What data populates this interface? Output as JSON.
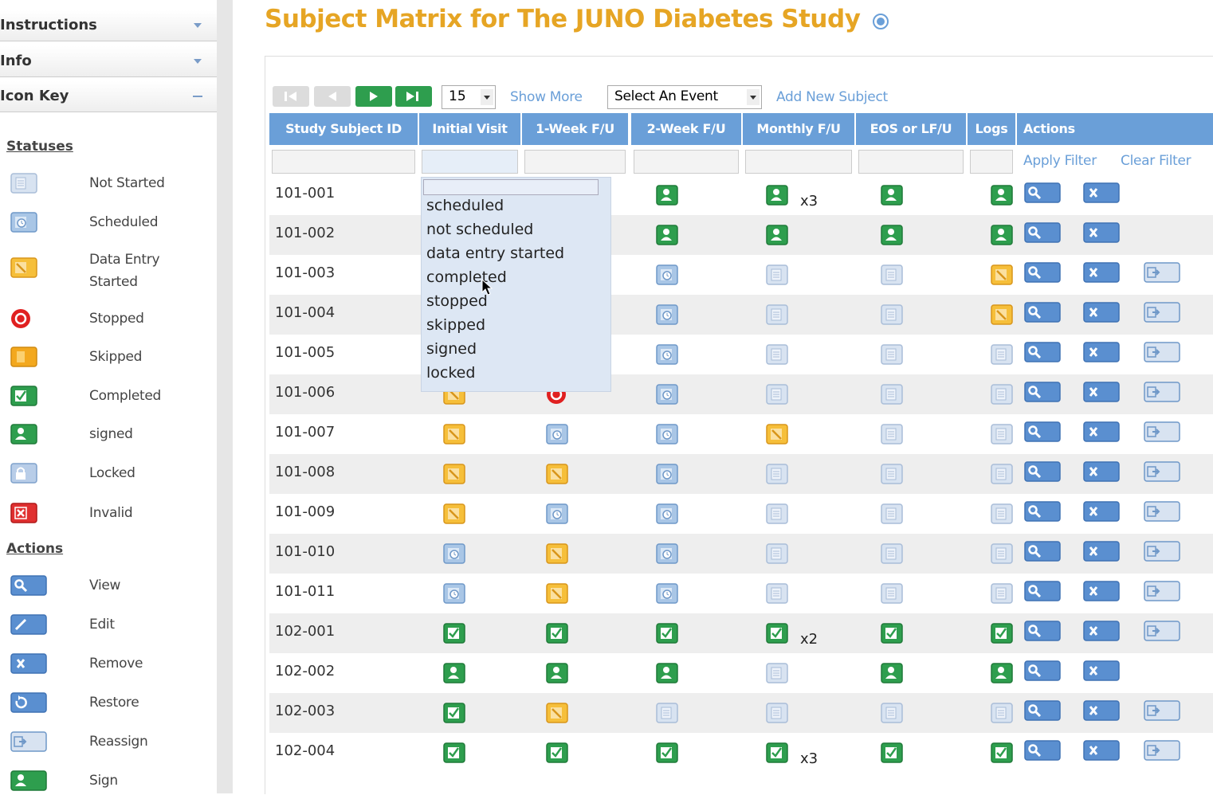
{
  "sidebar": {
    "panels": [
      "Instructions",
      "Info",
      "Icon Key"
    ],
    "statuses_heading": "Statuses",
    "statuses": [
      {
        "label": "Not Started",
        "icon": "not-started"
      },
      {
        "label": "Scheduled",
        "icon": "scheduled"
      },
      {
        "label": "Data Entry Started",
        "icon": "data-entry"
      },
      {
        "label": "Stopped",
        "icon": "stopped"
      },
      {
        "label": "Skipped",
        "icon": "skipped"
      },
      {
        "label": "Completed",
        "icon": "completed"
      },
      {
        "label": "signed",
        "icon": "signed"
      },
      {
        "label": "Locked",
        "icon": "locked"
      },
      {
        "label": "Invalid",
        "icon": "invalid"
      }
    ],
    "actions_heading": "Actions",
    "actions": [
      {
        "label": "View",
        "icon": "view"
      },
      {
        "label": "Edit",
        "icon": "edit"
      },
      {
        "label": "Remove",
        "icon": "remove"
      },
      {
        "label": "Restore",
        "icon": "restore"
      },
      {
        "label": "Reassign",
        "icon": "reassign"
      },
      {
        "label": "Sign",
        "icon": "signed"
      }
    ]
  },
  "main": {
    "title": "Subject Matrix for The JUNO Diabetes Study",
    "toolbar": {
      "page_size": "15",
      "show_more": "Show More",
      "event_select": "Select An Event",
      "add_subject": "Add New Subject"
    },
    "table": {
      "headers": [
        "Study Subject ID",
        "Initial Visit",
        "1-Week F/U",
        "2-Week F/U",
        "Monthly F/U",
        "EOS or LF/U",
        "Logs",
        "Actions"
      ],
      "filter_links": [
        "Apply Filter",
        "Clear Filter"
      ],
      "rows": [
        {
          "id": "101-001",
          "cells": [
            null,
            null,
            "signed",
            {
              "status": "signed",
              "label": "x3"
            },
            "signed",
            "signed"
          ],
          "actions": [
            "view",
            "remove"
          ]
        },
        {
          "id": "101-002",
          "cells": [
            null,
            null,
            "signed",
            "signed",
            "signed",
            "signed"
          ],
          "actions": [
            "view",
            "remove"
          ]
        },
        {
          "id": "101-003",
          "cells": [
            null,
            null,
            "scheduled",
            "not-started",
            "not-started",
            "data-entry"
          ],
          "actions": [
            "view",
            "remove",
            "reassign"
          ]
        },
        {
          "id": "101-004",
          "cells": [
            null,
            null,
            "scheduled",
            "not-started",
            "not-started",
            "data-entry"
          ],
          "actions": [
            "view",
            "remove",
            "reassign"
          ]
        },
        {
          "id": "101-005",
          "cells": [
            null,
            null,
            "scheduled",
            "not-started",
            "not-started",
            "not-started"
          ],
          "actions": [
            "view",
            "remove",
            "reassign"
          ]
        },
        {
          "id": "101-006",
          "cells": [
            "data-entry",
            "stopped",
            "scheduled",
            "not-started",
            "not-started",
            "not-started"
          ],
          "actions": [
            "view",
            "remove",
            "reassign"
          ]
        },
        {
          "id": "101-007",
          "cells": [
            "data-entry",
            "scheduled",
            "scheduled",
            "data-entry",
            "not-started",
            "not-started"
          ],
          "actions": [
            "view",
            "remove",
            "reassign"
          ]
        },
        {
          "id": "101-008",
          "cells": [
            "data-entry",
            "data-entry",
            "scheduled",
            "not-started",
            "not-started",
            "not-started"
          ],
          "actions": [
            "view",
            "remove",
            "reassign"
          ]
        },
        {
          "id": "101-009",
          "cells": [
            "data-entry",
            "scheduled",
            "scheduled",
            "not-started",
            "not-started",
            "not-started"
          ],
          "actions": [
            "view",
            "remove",
            "reassign"
          ]
        },
        {
          "id": "101-010",
          "cells": [
            "scheduled",
            "data-entry",
            "scheduled",
            "not-started",
            "not-started",
            "not-started"
          ],
          "actions": [
            "view",
            "remove",
            "reassign"
          ]
        },
        {
          "id": "101-011",
          "cells": [
            "scheduled",
            "data-entry",
            "scheduled",
            "not-started",
            "not-started",
            "not-started"
          ],
          "actions": [
            "view",
            "remove",
            "reassign"
          ]
        },
        {
          "id": "102-001",
          "cells": [
            "completed",
            "completed",
            "completed",
            {
              "status": "completed",
              "label": "x2"
            },
            "completed",
            "completed"
          ],
          "actions": [
            "view",
            "remove",
            "reassign"
          ]
        },
        {
          "id": "102-002",
          "cells": [
            "signed",
            "signed",
            "signed",
            "not-started",
            "signed",
            "signed"
          ],
          "actions": [
            "view",
            "remove"
          ]
        },
        {
          "id": "102-003",
          "cells": [
            "completed",
            "data-entry",
            "not-started",
            "not-started",
            "not-started",
            "not-started"
          ],
          "actions": [
            "view",
            "remove",
            "reassign"
          ]
        },
        {
          "id": "102-004",
          "cells": [
            "completed",
            "completed",
            "completed",
            {
              "status": "completed",
              "label": "x3"
            },
            "completed",
            "completed"
          ],
          "actions": [
            "view",
            "remove",
            "reassign"
          ]
        }
      ]
    },
    "filter_dropdown": {
      "options": [
        "scheduled",
        "not scheduled",
        "data entry started",
        "completed",
        "stopped",
        "skipped",
        "signed",
        "locked"
      ]
    }
  }
}
